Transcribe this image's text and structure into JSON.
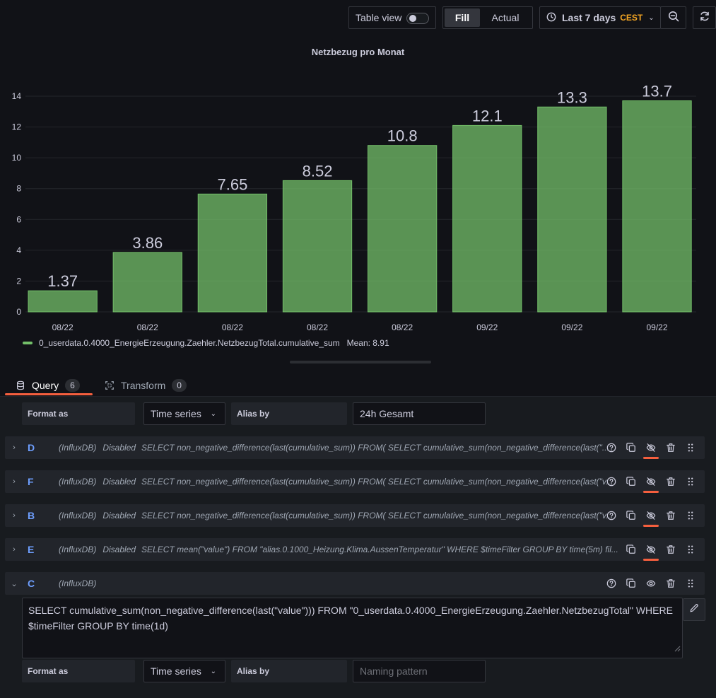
{
  "toolbar": {
    "table_view_label": "Table view",
    "table_view_on": false,
    "fill_label": "Fill",
    "actual_label": "Actual",
    "time_range": "Last 7 days",
    "timezone": "CEST"
  },
  "panel": {
    "title": "Netzbezug pro Monat"
  },
  "chart_data": {
    "type": "bar",
    "title": "Netzbezug pro Monat",
    "categories": [
      "08/22",
      "08/22",
      "08/22",
      "08/22",
      "08/22",
      "09/22",
      "09/22",
      "09/22"
    ],
    "series": [
      {
        "name": "0_userdata.0.4000_EnergieErzeugung.Zaehler.NetzbezugTotal.cumulative_sum",
        "values": [
          1.37,
          3.86,
          7.65,
          8.52,
          10.8,
          12.1,
          13.3,
          13.7
        ],
        "color": "#73bf69"
      }
    ],
    "value_labels": [
      "1.37",
      "3.86",
      "7.65",
      "8.52",
      "10.8",
      "12.1",
      "13.3",
      "13.7"
    ],
    "ylim": [
      0,
      14
    ],
    "yticks": [
      0,
      2,
      4,
      6,
      8,
      10,
      12,
      14
    ],
    "grid": true,
    "legend": "bottom-left"
  },
  "legend": {
    "series_name": "0_userdata.0.4000_EnergieErzeugung.Zaehler.NetzbezugTotal.cumulative_sum",
    "mean_label": "Mean: 8.91"
  },
  "tabs": {
    "query_label": "Query",
    "query_count": "6",
    "transform_label": "Transform",
    "transform_count": "0"
  },
  "top_options": {
    "format_label": "Format as",
    "format_value": "Time series",
    "alias_label": "Alias by",
    "alias_value": "24h Gesamt"
  },
  "queries": [
    {
      "ref": "D",
      "datasource": "(InfluxDB)",
      "status": "Disabled",
      "sql": "SELECT non_negative_difference(last(cumulative_sum)) FROM( SELECT cumulative_sum(non_negative_difference(last(\"..."
    },
    {
      "ref": "F",
      "datasource": "(InfluxDB)",
      "status": "Disabled",
      "sql": "SELECT non_negative_difference(last(cumulative_sum)) FROM( SELECT cumulative_sum(non_negative_difference(last(\"v..."
    },
    {
      "ref": "B",
      "datasource": "(InfluxDB)",
      "status": "Disabled",
      "sql": "SELECT non_negative_difference(last(cumulative_sum)) FROM( SELECT cumulative_sum(non_negative_difference(last(\"v..."
    },
    {
      "ref": "E",
      "datasource": "(InfluxDB)",
      "status": "Disabled",
      "sql": "SELECT mean(\"value\") FROM \"alias.0.1000_Heizung.Klima.AussenTemperatur\" WHERE $timeFilter GROUP BY time(5m) fil..."
    }
  ],
  "query_c": {
    "ref": "C",
    "datasource": "(InfluxDB)",
    "sql": "SELECT cumulative_sum(non_negative_difference(last(\"value\"))) FROM \"0_userdata.0.4000_EnergieErzeugung.Zaehler.NetzbezugTotal\" WHERE $timeFilter GROUP BY time(1d)",
    "format_label": "Format as",
    "format_value": "Time series",
    "alias_label": "Alias by",
    "alias_placeholder": "Naming pattern"
  }
}
